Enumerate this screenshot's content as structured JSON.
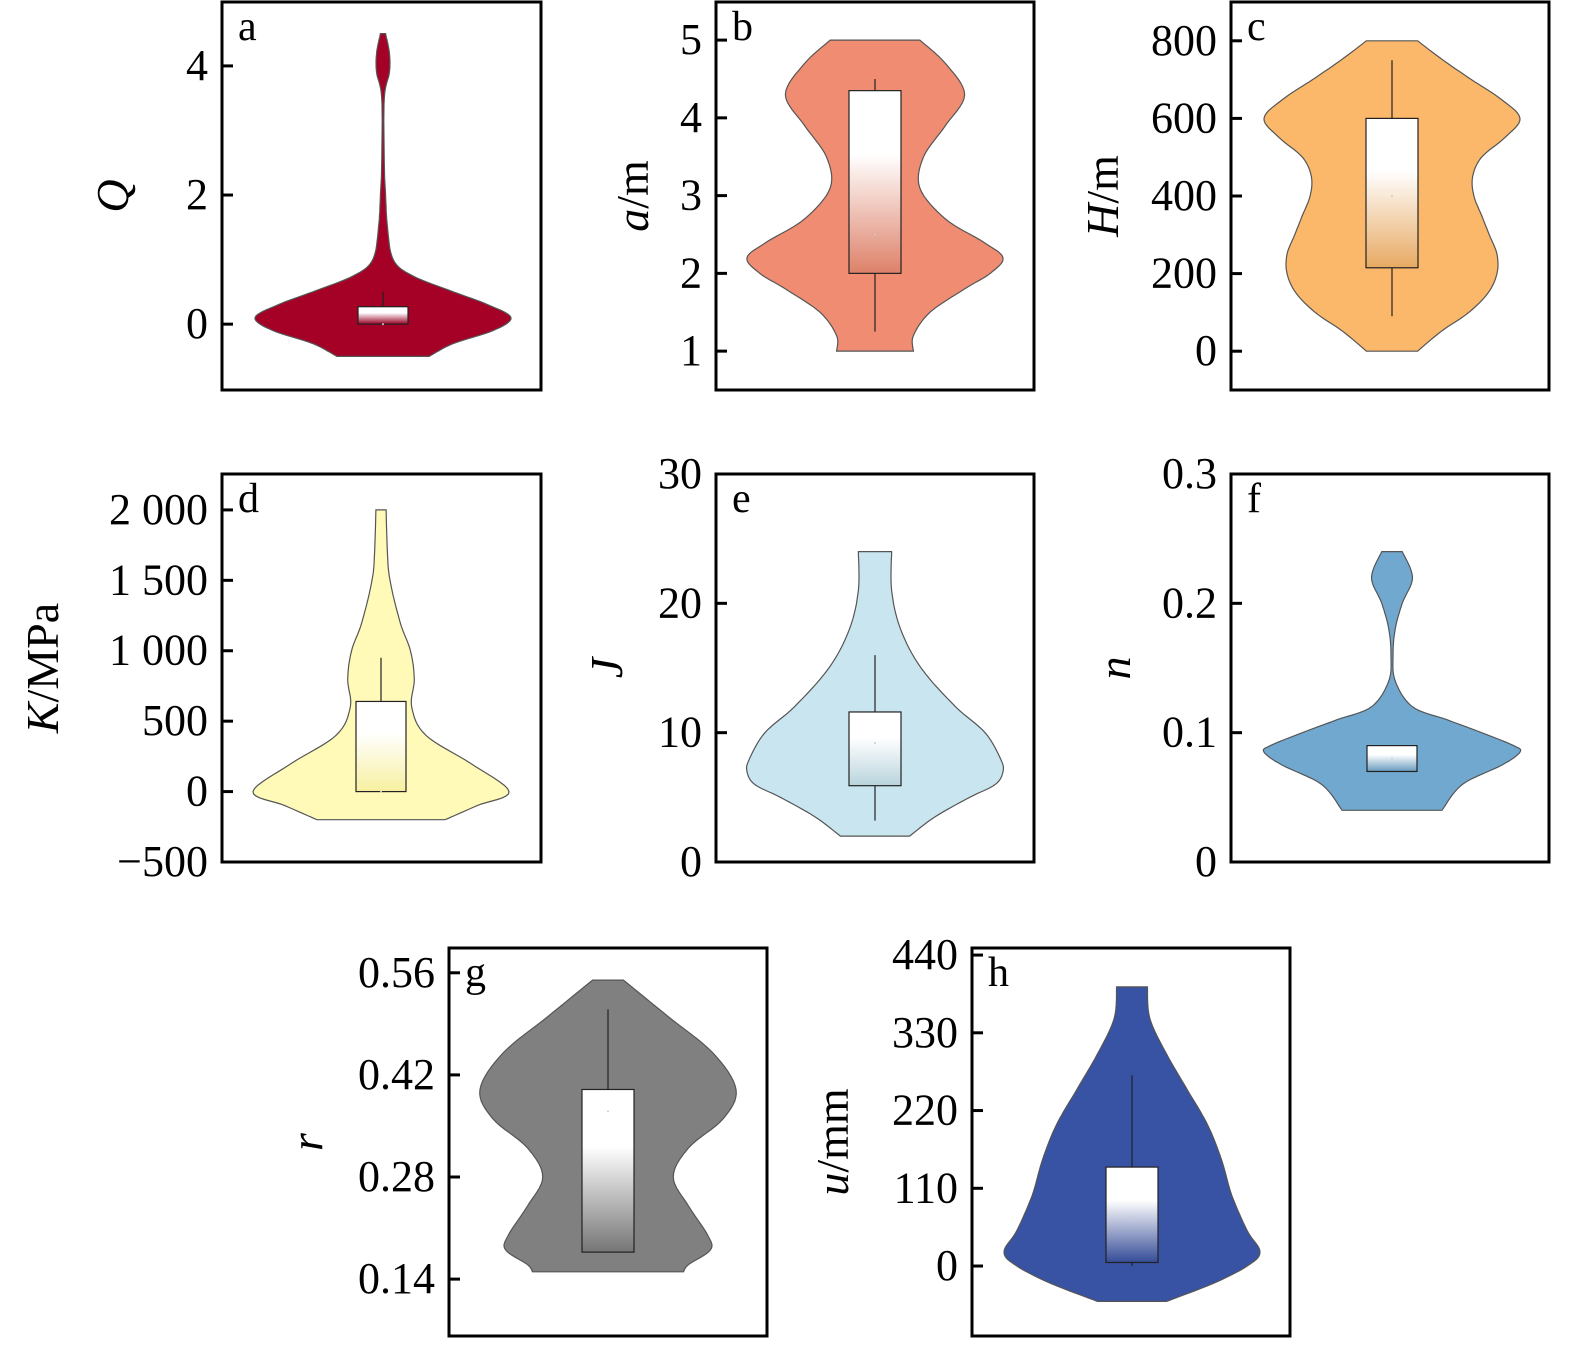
{
  "chart_data": [
    {
      "id": "a",
      "type": "violin",
      "panel_label": "a",
      "ylabel_var": "Q",
      "ylabel_unit": "",
      "ylim": [
        -1.02,
        4.99
      ],
      "ticks": [
        0,
        2,
        4
      ],
      "tick_labels": [
        "0",
        "2",
        "4"
      ],
      "color": "#a50026",
      "density_profile": [
        [
          4.5,
          0.02
        ],
        [
          4.2,
          0.05
        ],
        [
          3.9,
          0.05
        ],
        [
          3.5,
          0.01
        ],
        [
          2.5,
          0.01
        ],
        [
          2.0,
          0.02
        ],
        [
          1.5,
          0.035
        ],
        [
          1.0,
          0.08
        ],
        [
          0.75,
          0.23
        ],
        [
          0.5,
          0.55
        ],
        [
          0.3,
          0.82
        ],
        [
          0.1,
          1.0
        ],
        [
          -0.1,
          0.86
        ],
        [
          -0.3,
          0.55
        ],
        [
          -0.5,
          0.36
        ]
      ],
      "box": {
        "whisker_low": 0,
        "q1": 0,
        "median": 0,
        "q3": 0.27,
        "whisker_high": 0.5
      }
    },
    {
      "id": "b",
      "type": "violin",
      "panel_label": "b",
      "ylabel_var": "a",
      "ylabel_unit": "/m",
      "ylim": [
        0.5,
        5.49
      ],
      "ticks": [
        1,
        2,
        3,
        4,
        5
      ],
      "tick_labels": [
        "1",
        "2",
        "3",
        "4",
        "5"
      ],
      "color": "#f08c72",
      "density_profile": [
        [
          5.0,
          0.35
        ],
        [
          4.7,
          0.55
        ],
        [
          4.3,
          0.7
        ],
        [
          3.9,
          0.55
        ],
        [
          3.5,
          0.38
        ],
        [
          3.1,
          0.35
        ],
        [
          2.7,
          0.55
        ],
        [
          2.4,
          0.85
        ],
        [
          2.2,
          1.0
        ],
        [
          2.0,
          0.9
        ],
        [
          1.8,
          0.7
        ],
        [
          1.5,
          0.43
        ],
        [
          1.2,
          0.3
        ],
        [
          1.0,
          0.3
        ]
      ],
      "box": {
        "whisker_low": 1.25,
        "q1": 2.0,
        "median": 2.5,
        "q3": 4.35,
        "whisker_high": 4.5
      }
    },
    {
      "id": "c",
      "type": "violin",
      "panel_label": "c",
      "ylabel_var": "H",
      "ylabel_unit": "/m",
      "ylim": [
        -100,
        900
      ],
      "ticks": [
        0,
        200,
        400,
        600,
        800
      ],
      "tick_labels": [
        "0",
        "200",
        "400",
        "600",
        "800"
      ],
      "color": "#fbb86b",
      "density_profile": [
        [
          800,
          0.2
        ],
        [
          750,
          0.4
        ],
        [
          700,
          0.62
        ],
        [
          650,
          0.85
        ],
        [
          600,
          1.0
        ],
        [
          550,
          0.88
        ],
        [
          500,
          0.7
        ],
        [
          450,
          0.63
        ],
        [
          400,
          0.64
        ],
        [
          350,
          0.7
        ],
        [
          300,
          0.76
        ],
        [
          250,
          0.82
        ],
        [
          200,
          0.82
        ],
        [
          150,
          0.75
        ],
        [
          100,
          0.6
        ],
        [
          50,
          0.38
        ],
        [
          0,
          0.2
        ]
      ],
      "box": {
        "whisker_low": 90,
        "q1": 215,
        "median": 400,
        "q3": 600,
        "whisker_high": 750
      }
    },
    {
      "id": "d",
      "type": "violin",
      "panel_label": "d",
      "ylabel_var": "K",
      "ylabel_unit": "/MPa",
      "ylim": [
        -500,
        2255
      ],
      "ticks": [
        -500,
        0,
        500,
        1000,
        1500,
        2000
      ],
      "tick_labels": [
        "−500",
        "0",
        "500",
        "1 000",
        "1 500",
        "2 000"
      ],
      "color": "#fffab8",
      "density_profile": [
        [
          2000,
          0.04
        ],
        [
          1700,
          0.05
        ],
        [
          1500,
          0.07
        ],
        [
          1200,
          0.15
        ],
        [
          1000,
          0.23
        ],
        [
          800,
          0.26
        ],
        [
          600,
          0.24
        ],
        [
          400,
          0.35
        ],
        [
          200,
          0.7
        ],
        [
          0,
          1.0
        ],
        [
          -100,
          0.75
        ],
        [
          -200,
          0.5
        ]
      ],
      "box": {
        "whisker_low": 0,
        "q1": 0,
        "median": 0,
        "q3": 640,
        "whisker_high": 950
      }
    },
    {
      "id": "e",
      "type": "violin",
      "panel_label": "e",
      "ylabel_var": "J",
      "ylabel_unit": "",
      "ylim": [
        0,
        30
      ],
      "ticks": [
        0,
        10,
        20,
        30
      ],
      "tick_labels": [
        "0",
        "10",
        "20",
        "30"
      ],
      "color": "#c9e6f0",
      "density_profile": [
        [
          24,
          0.13
        ],
        [
          21,
          0.13
        ],
        [
          18,
          0.2
        ],
        [
          15,
          0.36
        ],
        [
          12,
          0.63
        ],
        [
          10,
          0.86
        ],
        [
          8,
          0.98
        ],
        [
          7,
          1.0
        ],
        [
          6,
          0.94
        ],
        [
          5,
          0.74
        ],
        [
          3.5,
          0.47
        ],
        [
          2,
          0.27
        ]
      ],
      "box": {
        "whisker_low": 3.2,
        "q1": 5.9,
        "median": 9.2,
        "q3": 11.6,
        "whisker_high": 16
      }
    },
    {
      "id": "f",
      "type": "violin",
      "panel_label": "f",
      "ylabel_var": "n",
      "ylabel_unit": "",
      "ylim": [
        0,
        0.3
      ],
      "ticks": [
        0,
        0.1,
        0.2,
        0.3
      ],
      "tick_labels": [
        "0",
        "0.1",
        "0.2",
        "0.3"
      ],
      "color": "#70a8cf",
      "density_profile": [
        [
          0.24,
          0.08
        ],
        [
          0.22,
          0.16
        ],
        [
          0.2,
          0.08
        ],
        [
          0.18,
          0.025
        ],
        [
          0.16,
          0.008
        ],
        [
          0.14,
          0.025
        ],
        [
          0.12,
          0.16
        ],
        [
          0.11,
          0.43
        ],
        [
          0.1,
          0.7
        ],
        [
          0.09,
          0.95
        ],
        [
          0.085,
          1.0
        ],
        [
          0.075,
          0.86
        ],
        [
          0.06,
          0.55
        ],
        [
          0.04,
          0.39
        ]
      ],
      "box": {
        "whisker_low": 0.07,
        "q1": 0.07,
        "median": 0.08,
        "q3": 0.09,
        "whisker_high": 0.09
      }
    },
    {
      "id": "g",
      "type": "violin",
      "panel_label": "g",
      "ylabel_var": "r",
      "ylabel_unit": "",
      "ylim": [
        0.062,
        0.594
      ],
      "ticks": [
        0.14,
        0.28,
        0.42,
        0.56
      ],
      "tick_labels": [
        "0.14",
        "0.28",
        "0.42",
        "0.56"
      ],
      "color": "#808080",
      "density_profile": [
        [
          0.55,
          0.12
        ],
        [
          0.5,
          0.47
        ],
        [
          0.45,
          0.82
        ],
        [
          0.4,
          1.0
        ],
        [
          0.36,
          0.9
        ],
        [
          0.32,
          0.63
        ],
        [
          0.28,
          0.51
        ],
        [
          0.24,
          0.63
        ],
        [
          0.2,
          0.78
        ],
        [
          0.18,
          0.8
        ],
        [
          0.16,
          0.63
        ],
        [
          0.15,
          0.59
        ]
      ],
      "box": {
        "whisker_low": 0.177,
        "q1": 0.177,
        "median": 0.37,
        "q3": 0.4,
        "whisker_high": 0.51
      }
    },
    {
      "id": "h",
      "type": "violin",
      "panel_label": "h",
      "ylabel_var": "u",
      "ylabel_unit": "/mm",
      "ylim": [
        -99,
        450
      ],
      "ticks": [
        0,
        110,
        220,
        330,
        440
      ],
      "tick_labels": [
        "0",
        "110",
        "220",
        "330",
        "440"
      ],
      "color": "#3852a4",
      "density_profile": [
        [
          395,
          0.12
        ],
        [
          350,
          0.14
        ],
        [
          300,
          0.27
        ],
        [
          250,
          0.43
        ],
        [
          200,
          0.59
        ],
        [
          150,
          0.7
        ],
        [
          100,
          0.78
        ],
        [
          50,
          0.9
        ],
        [
          20,
          1.0
        ],
        [
          0,
          0.9
        ],
        [
          -25,
          0.63
        ],
        [
          -50,
          0.27
        ]
      ],
      "box": {
        "whisker_low": 0,
        "q1": 5,
        "median": 70,
        "q3": 140,
        "whisker_high": 270
      }
    }
  ]
}
